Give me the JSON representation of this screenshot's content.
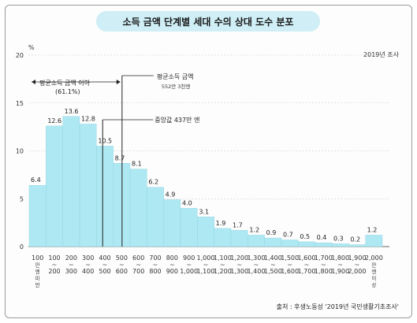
{
  "chart_data": {
    "type": "bar",
    "title": "소득 금액 단계별 세대 수의 상대 도수 분포",
    "unit": "%",
    "year_note": "2019년 조사",
    "source": "출처 : 후생노동성 '2019년 국민생활기초조사'",
    "y_ticks": [
      "0",
      "5",
      "10",
      "15",
      "20"
    ],
    "ylim": [
      0,
      20
    ],
    "grid": true,
    "categories": [
      [
        "100",
        "만",
        "엔",
        "미",
        "만"
      ],
      [
        "100",
        "~",
        "200"
      ],
      [
        "200",
        "~",
        "300"
      ],
      [
        "300",
        "~",
        "400"
      ],
      [
        "400",
        "~",
        "500"
      ],
      [
        "500",
        "~",
        "600"
      ],
      [
        "600",
        "~",
        "700"
      ],
      [
        "700",
        "~",
        "800"
      ],
      [
        "800",
        "~",
        "900"
      ],
      [
        "900",
        "~",
        "1,000"
      ],
      [
        "1,000",
        "~",
        "1,100"
      ],
      [
        "1,100",
        "~",
        "1,200"
      ],
      [
        "1,200",
        "~",
        "1,300"
      ],
      [
        "1,300",
        "~",
        "1,400"
      ],
      [
        "1,400",
        "~",
        "1,500"
      ],
      [
        "1,500",
        "~",
        "1,600"
      ],
      [
        "1,600",
        "~",
        "1,700"
      ],
      [
        "1,700",
        "~",
        "1,800"
      ],
      [
        "1,800",
        "~",
        "1,900"
      ],
      [
        "1,900",
        "~",
        "2,000"
      ],
      [
        "2,000",
        "만",
        "엔",
        "이",
        "상"
      ]
    ],
    "values": [
      6.4,
      12.6,
      13.6,
      12.8,
      10.5,
      8.7,
      8.1,
      6.2,
      4.9,
      4.0,
      3.1,
      1.9,
      1.7,
      1.2,
      0.9,
      0.7,
      0.5,
      0.4,
      0.3,
      0.2,
      1.2
    ],
    "value_labels": [
      "6.4",
      "12.6",
      "13.6",
      "12.8",
      "10.5",
      "8.7",
      "8.1",
      "6.2",
      "4.9",
      "4.0",
      "3.1",
      "1.9",
      "1.7",
      "1.2",
      "0.9",
      "0.7",
      "0.5",
      "0.4",
      "0.3",
      "0.2",
      "1.2"
    ],
    "annotations": {
      "below_mean": "평균소득 금액 이하",
      "below_mean_pct": "(61.1%)",
      "mean_title": "평균소득 금액",
      "mean_value": "552만 3천엔",
      "median": "중앙값 437만 엔",
      "mean_x": 552.3,
      "median_x": 437
    },
    "colors": {
      "bar": "#aee8f2",
      "bar_edge": "#8fd2e0",
      "title_bg": "#cfeef6"
    }
  }
}
